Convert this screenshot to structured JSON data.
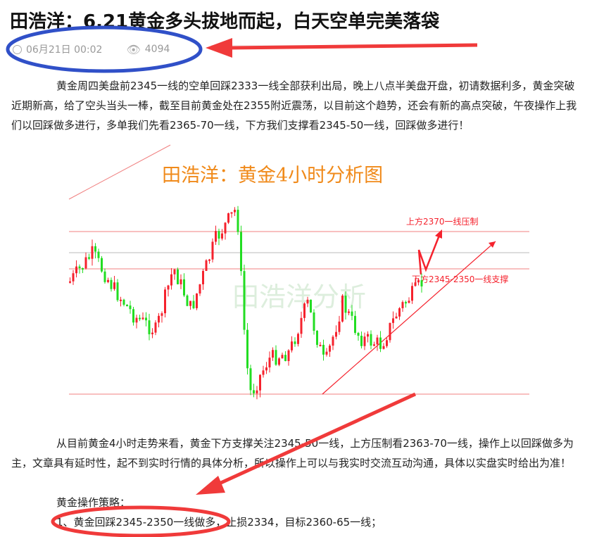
{
  "article": {
    "title": "田浩洋：6.21黄金多头拔地而起，白天空单完美落袋",
    "date": "06月21日 00:02",
    "views": "4094",
    "paragraph1": "黄金周四美盘前2345一线的空单回踩2333一线全部获利出局，晚上八点半美盘开盘，初请数据利多，黄金突破近期新高，给了空头当头一棒，截至目前黄金处在2355附近震荡，以目前这个趋势，还会有新的高点突破，午夜操作上我们以回踩做多进行，多单我们先看2365-70一线，下方我们支撑看2345-50一线，回踩做多进行！",
    "paragraph2": "从目前黄金4小时走势来看，黄金下方支撑关注2345-50一线，上方压制看2363-70一线，操作上以回踩做多为主，文章具有延时性，起不到实时行情的具体分析，所以操作上可以与我实时交流互动沟通，具体以实盘实时给出为准！",
    "strategy_heading": "黄金操作策略：",
    "strategy_1": "1、黄金回踩2345-2350一线做多，止损2334，目标2360-65一线；"
  },
  "chart_image": {
    "title": "田浩洋：黄金4小时分析图",
    "resistance_label": "上方2370一线压制",
    "support_label": "下方2345-2350一线支撑",
    "watermark": "田浩洋分析"
  },
  "icons": {
    "date": "clock-icon",
    "views": "eye-icon"
  },
  "colors": {
    "up": "#f5222d",
    "down": "#22dd22",
    "annotation_blue": "#3050c8",
    "annotation_red": "#f03a3a",
    "chart_title": "#f08a1a"
  }
}
